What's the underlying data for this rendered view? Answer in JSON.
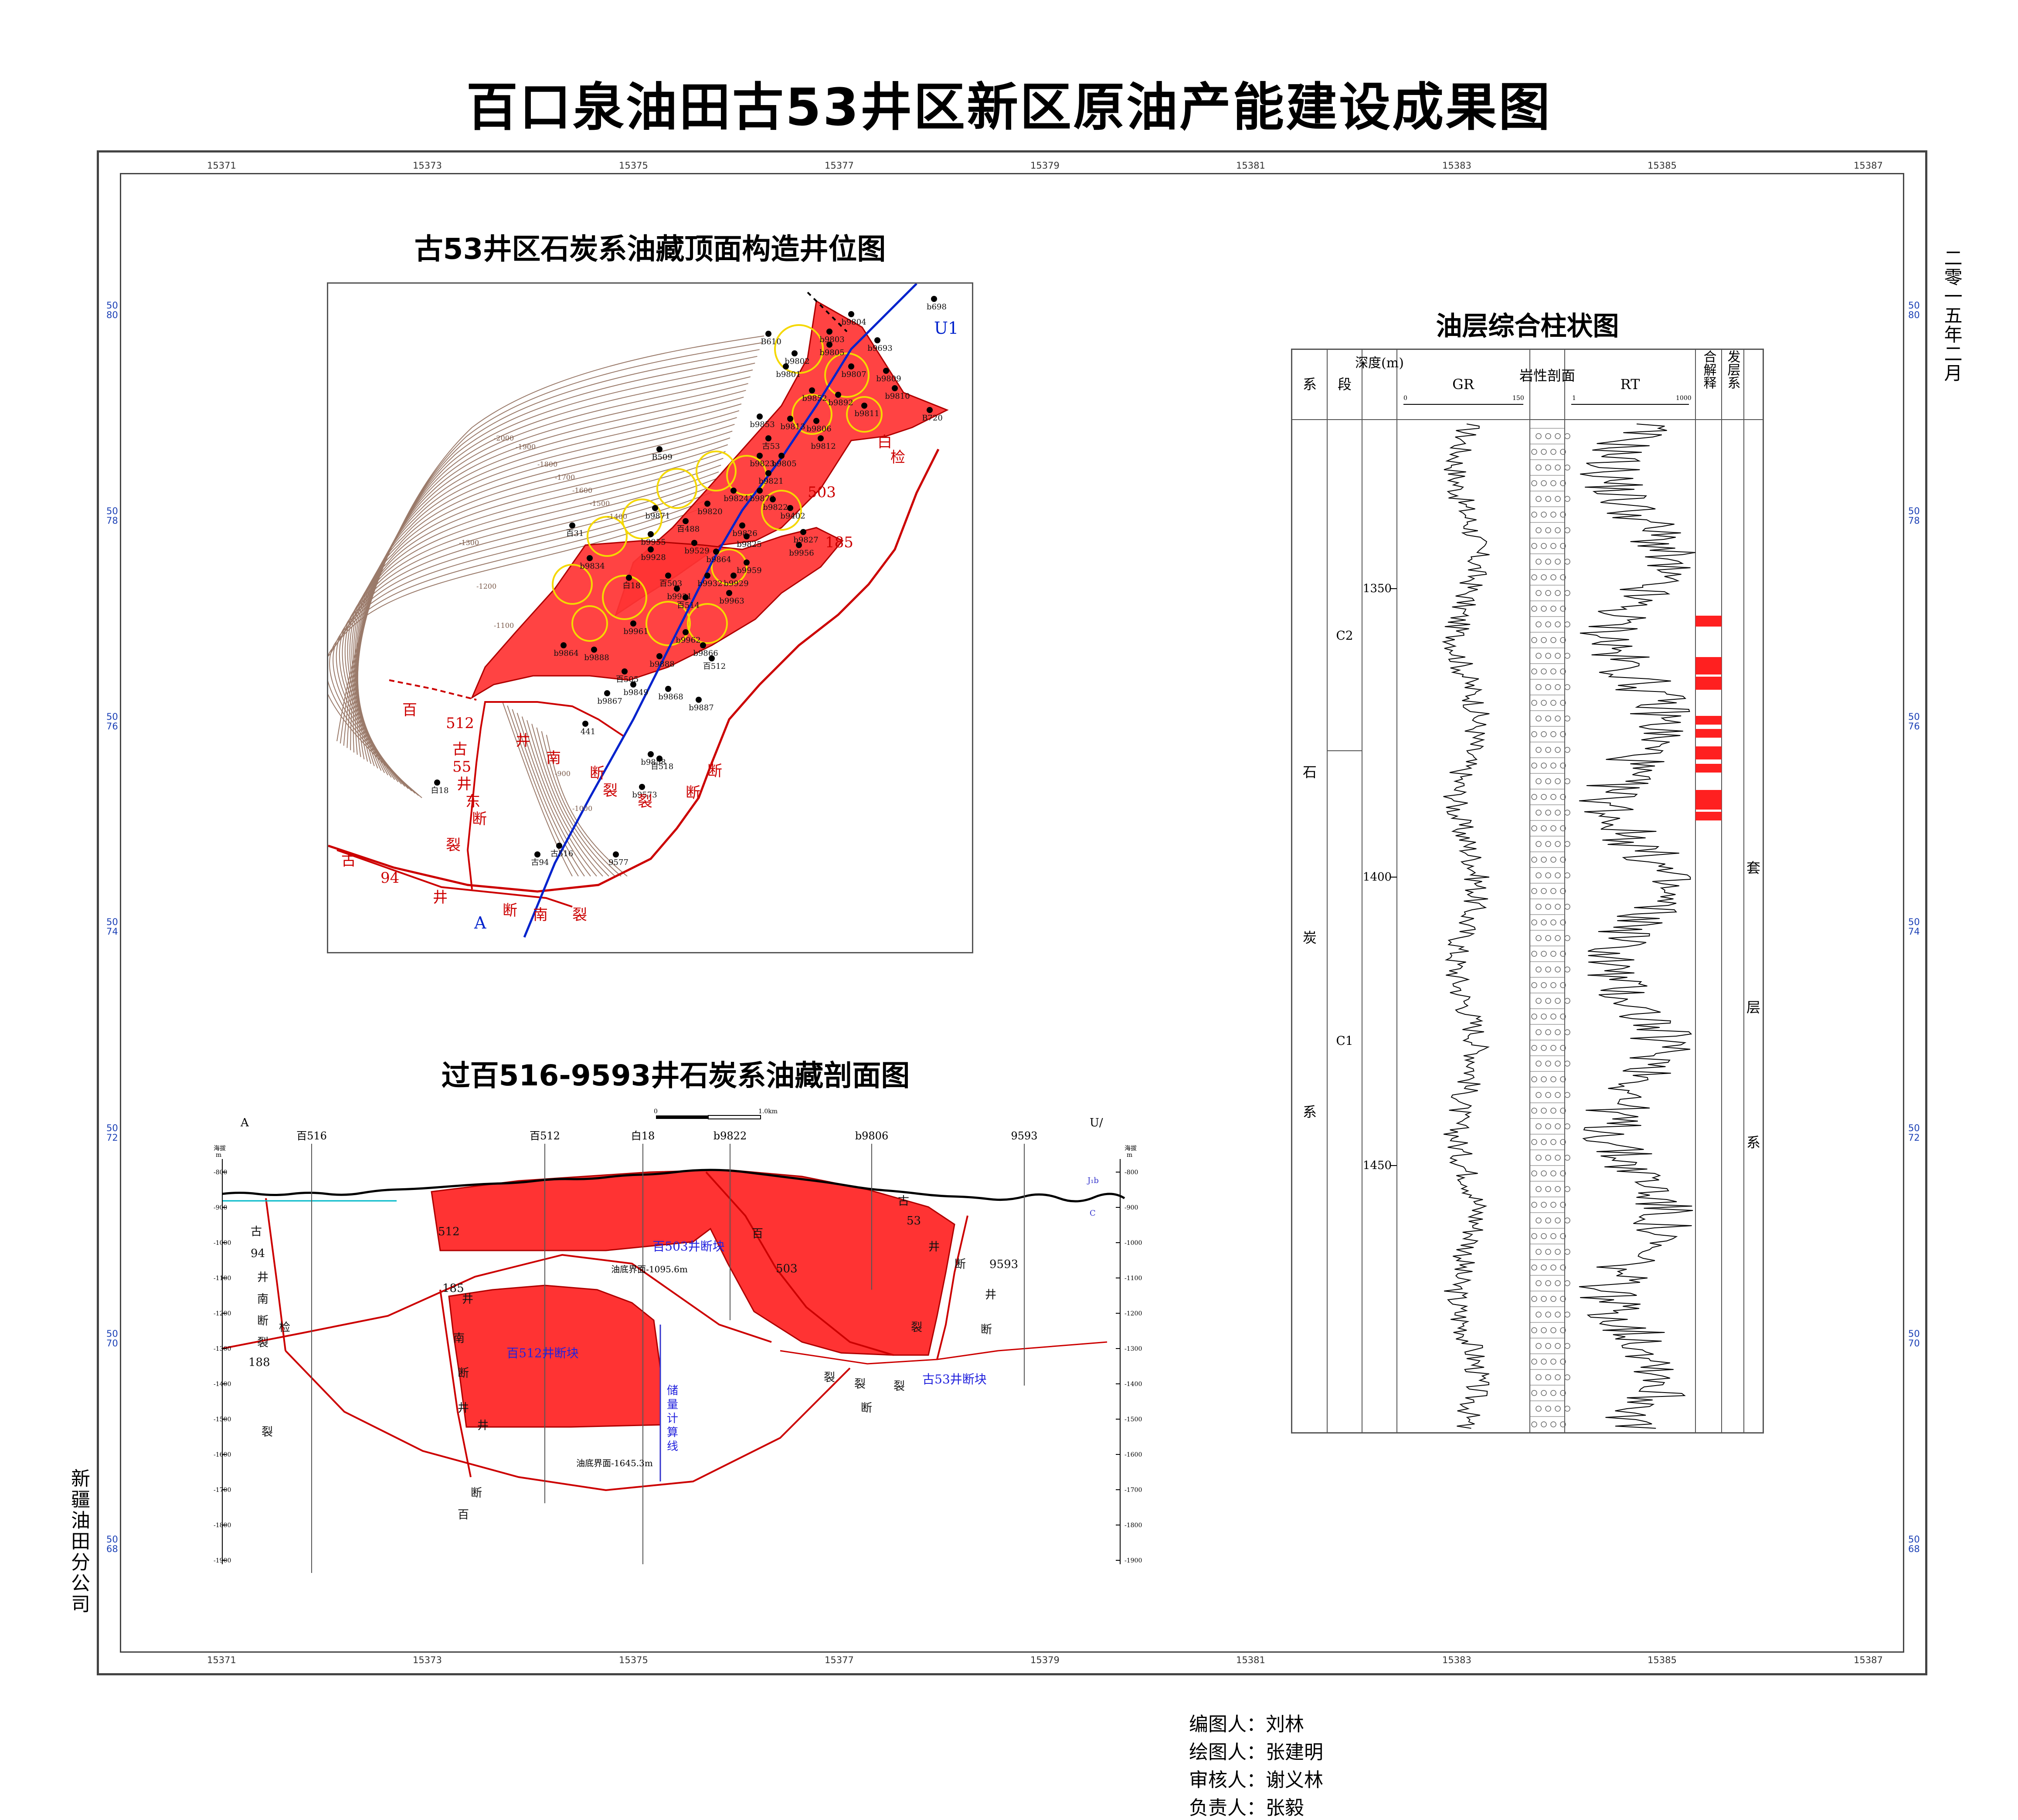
{
  "title": "百口泉油田古53井区新区原油产能建设成果图",
  "grid": {
    "x_labels": [
      "15371",
      "15373",
      "15375",
      "15377",
      "15379",
      "15381",
      "15383",
      "15385",
      "15387"
    ],
    "y_labels": [
      "5080",
      "5078",
      "5076",
      "5074",
      "5072",
      "5070",
      "5068"
    ]
  },
  "map": {
    "title": "古53井区石炭系油藏顶面构造井位图",
    "line_label_start": "A",
    "line_label_end": "U1",
    "contour_labels": [
      "-2000",
      "-1900",
      "-1800",
      "-1700",
      "-1600",
      "-1500",
      "-1400",
      "-1300",
      "-1200",
      "-1100",
      "-1000",
      "-900"
    ],
    "wells": [
      "b698",
      "b9804",
      "B610",
      "b9803",
      "b9805",
      "b9802",
      "b9693",
      "b9801",
      "b9807",
      "b9809",
      "b9810",
      "b9852",
      "b9892",
      "b9811",
      "B720",
      "b9853",
      "b9813",
      "b9806",
      "古53",
      "b9812",
      "B509",
      "b9805",
      "b9823",
      "b9821",
      "b9873",
      "b9824",
      "b9822",
      "b9402",
      "百31",
      "b9871",
      "b9820",
      "百488",
      "b9826",
      "b9955",
      "b9825",
      "b9827",
      "b9956",
      "b9834",
      "b9529",
      "b9928",
      "b9864",
      "b9959",
      "b9929",
      "百503",
      "白18",
      "b9932",
      "b9931",
      "百514",
      "b9963",
      "b9961",
      "b9962",
      "b9866",
      "百512",
      "b9864",
      "b9888",
      "b9888",
      "百505",
      "b9849",
      "b9867",
      "b9868",
      "b9887",
      "441",
      "b9858",
      "百518",
      "b9573",
      "古94",
      "古516",
      "9577",
      "白18"
    ],
    "fault_labels": [
      "百",
      "512",
      "井",
      "南",
      "断",
      "裂",
      "古",
      "55",
      "井",
      "东",
      "断",
      "裂",
      "古",
      "94",
      "井",
      "南",
      "断",
      "裂",
      "白",
      "503",
      "185",
      "检",
      "断",
      "断",
      "裂"
    ]
  },
  "section": {
    "title": "过百516-9593井石炭系油藏剖面图",
    "end_left": "A",
    "end_right": "U/",
    "scale_zero": "0",
    "scale_end": "1.0km",
    "axis_title_top": "海拔",
    "axis_title_unit": "m",
    "wells": [
      "百516",
      "百512",
      "白18",
      "b9822",
      "b9806",
      "9593"
    ],
    "depth_ticks": [
      "-800",
      "-900",
      "-1000",
      "-1100",
      "-1200",
      "-1300",
      "-1400",
      "-1500",
      "-1600",
      "-1700",
      "-1800",
      "-1900"
    ],
    "right_labels": [
      "J₁b",
      "C"
    ],
    "blocks": [
      "百503井断块",
      "百512井断块",
      "古53井断块"
    ],
    "oil_base_1": "油底界面-1095.6m",
    "oil_base_2": "油底界面-1645.3m",
    "reserve_line": "储量计算线",
    "fault_text": [
      "古",
      "94",
      "井",
      "南",
      "断",
      "裂",
      "检",
      "188",
      "裂",
      "井",
      "断",
      "百",
      "512",
      "185",
      "井",
      "南",
      "断",
      "井",
      "百",
      "503",
      "古",
      "53",
      "井",
      "断",
      "裂",
      "9593",
      "井",
      "断",
      "裂",
      "断",
      "裂",
      "裂"
    ]
  },
  "log": {
    "title": "油层综合柱状图",
    "headers": [
      "系",
      "段",
      "深度(m)",
      "GR",
      "岩性剖面",
      "RT",
      "综合解释",
      "开发层系"
    ],
    "gr_min": "0",
    "gr_max": "150",
    "rt_min": "1",
    "rt_max": "1000",
    "depth_ticks": [
      "1350",
      "1400",
      "1450"
    ],
    "system": [
      "石",
      "炭",
      "系"
    ],
    "sections": [
      "C2",
      "C1"
    ],
    "dev_layer": [
      "套",
      "层",
      "系"
    ]
  },
  "side": {
    "date": "二零一五年二月",
    "company": "新疆油田分公司"
  },
  "credits": {
    "compiler": "编图人：刘林",
    "drafter": "绘图人：张建明",
    "reviewer": "审核人：谢义林",
    "leader": "负责人：张毅"
  }
}
